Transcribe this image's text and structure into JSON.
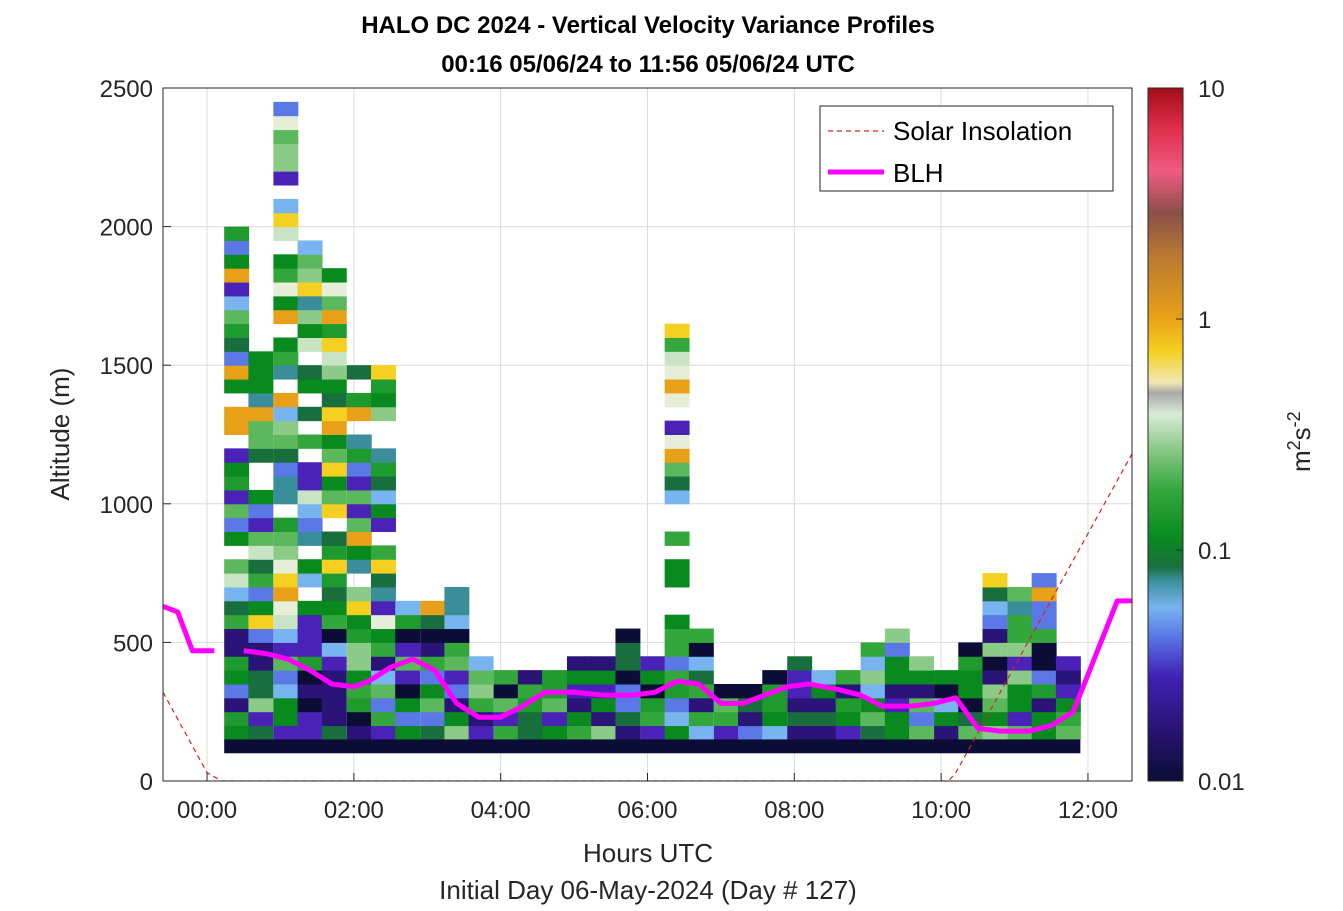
{
  "title_line1": "HALO DC 2024 - Vertical Velocity Variance Profiles",
  "title_line2": "00:16 05/06/24 to 11:56 05/06/24  UTC",
  "xlabel": "Hours UTC",
  "ylabel": "Altitude (m)",
  "footer": "Initial Day 06-May-2024 (Day # 127)",
  "colorbar": {
    "label_base": "m",
    "label_sup1": "2",
    "label_mid": "s",
    "label_sup2": "-2",
    "ticks": [
      "10",
      "1",
      "0.1",
      "0.01"
    ]
  },
  "legend": {
    "solar": "Solar Insolation",
    "blh": "BLH"
  },
  "colors": {
    "blh": "#ff00ff",
    "solar": "#e0201c",
    "floor": "#0b0d36"
  },
  "chart_data": {
    "type": "heatmap",
    "xlim": [
      -0.6,
      12.6
    ],
    "ylim": [
      0,
      2500
    ],
    "xticks": [
      "00:00",
      "02:00",
      "04:00",
      "06:00",
      "08:00",
      "10:00",
      "12:00"
    ],
    "xtick_hours": [
      0,
      2,
      4,
      6,
      8,
      10,
      12
    ],
    "yticks": [
      0,
      500,
      1000,
      1500,
      2000,
      2500
    ],
    "colorbar_range": [
      0.01,
      10
    ],
    "colorbar_scale": "log",
    "bin_hours": 0.333,
    "bin_m": 50,
    "time_centers": [
      0.4,
      0.73,
      1.07,
      1.4,
      1.73,
      2.07,
      2.4,
      2.73,
      3.07,
      3.4,
      3.73,
      4.07,
      4.4,
      4.73,
      5.07,
      5.4,
      5.73,
      6.07,
      6.4,
      6.73,
      7.07,
      7.4,
      7.73,
      8.07,
      8.4,
      8.73,
      9.07,
      9.4,
      9.73,
      10.07,
      10.4,
      10.73,
      11.07,
      11.4,
      11.73
    ],
    "profile_tops_m": [
      1960,
      1550,
      2450,
      1950,
      1850,
      1500,
      1550,
      650,
      650,
      700,
      450,
      400,
      400,
      400,
      450,
      450,
      550,
      450,
      1700,
      550,
      350,
      350,
      400,
      450,
      400,
      400,
      500,
      550,
      450,
      400,
      500,
      750,
      750,
      750,
      450
    ],
    "lowest_range_gate_m": 100,
    "blh": {
      "name": "BLH",
      "x": [
        -0.6,
        -0.4,
        -0.2,
        0.1,
        0.5,
        0.8,
        1.1,
        1.4,
        1.7,
        2.0,
        2.2,
        2.5,
        2.8,
        3.1,
        3.4,
        3.7,
        4.0,
        4.3,
        4.6,
        5.0,
        5.4,
        5.8,
        6.1,
        6.4,
        6.7,
        7.0,
        7.3,
        7.6,
        7.9,
        8.2,
        8.6,
        8.9,
        9.2,
        9.6,
        9.9,
        10.2,
        10.5,
        10.8,
        11.2,
        11.5,
        11.8,
        12.1,
        12.4,
        12.6
      ],
      "y": [
        630,
        610,
        470,
        470,
        470,
        460,
        440,
        400,
        350,
        340,
        360,
        410,
        440,
        400,
        280,
        230,
        230,
        270,
        320,
        320,
        310,
        310,
        320,
        360,
        350,
        280,
        280,
        310,
        340,
        350,
        330,
        310,
        270,
        270,
        280,
        300,
        190,
        180,
        180,
        200,
        250,
        450,
        650,
        650
      ]
    },
    "solar_insolation": {
      "name": "Solar Insolation",
      "x": [
        -0.6,
        0.0,
        0.2,
        10.1,
        10.2,
        12.6
      ],
      "y": [
        320,
        30,
        0,
        0,
        30,
        1180
      ]
    }
  }
}
